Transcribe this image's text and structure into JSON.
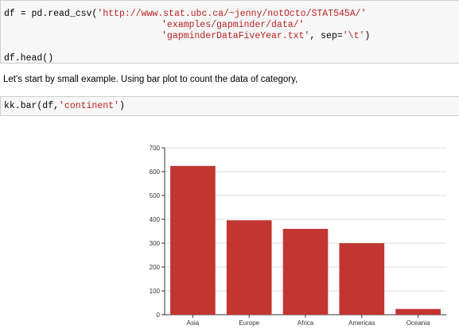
{
  "cell1": {
    "line1_a": "df = pd.read_csv(",
    "line1_str": "'http://www.stat.ubc.ca/~jenny/notOcto/STAT545A/'",
    "line2_str": "'examples/gapminder/data/'",
    "line3_str": "'gapminderDataFiveYear.txt'",
    "line3_b": ", sep=",
    "line3_sep": "'\\t'",
    "line3_c": ")",
    "line4": "df.head()"
  },
  "markdown_text": "Let's start by small example. Using bar plot to count the data of category,",
  "cell2": {
    "code_a": "kk.bar(df,",
    "code_str": "'continent'",
    "code_b": ")"
  },
  "colors": {
    "bar": "#c23531",
    "string": "#ba2121"
  },
  "chart_data": {
    "type": "bar",
    "categories": [
      "Asia",
      "Europe",
      "Africa",
      "Americas",
      "Oceania"
    ],
    "values": [
      624,
      396,
      360,
      300,
      24
    ],
    "ylim": [
      0,
      700
    ],
    "yticks": [
      0,
      100,
      200,
      300,
      400,
      500,
      600,
      700
    ],
    "grid": true
  }
}
